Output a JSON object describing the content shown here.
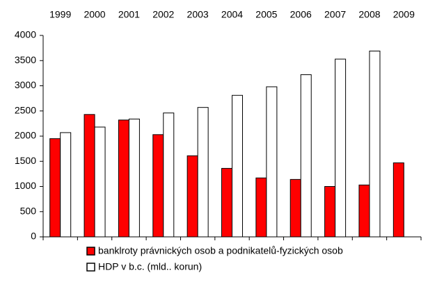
{
  "chart_data": {
    "type": "bar",
    "categories": [
      "1999",
      "2000",
      "2001",
      "2002",
      "2003",
      "2004",
      "2005",
      "2006",
      "2007",
      "2008",
      "2009"
    ],
    "series": [
      {
        "name": "banklroty právnických osob a podnikatelů-fyzických osob",
        "color": "#ff0000",
        "values": [
          1950,
          2430,
          2320,
          2030,
          1610,
          1360,
          1170,
          1140,
          1000,
          1030,
          1470
        ]
      },
      {
        "name": "HDP v b.c. (mld.. korun)",
        "color": "#ffffff",
        "values": [
          2070,
          2180,
          2340,
          2460,
          2570,
          2810,
          2980,
          3220,
          3530,
          3690,
          null
        ]
      }
    ],
    "ylim": [
      0,
      4000
    ],
    "yticks": [
      0,
      500,
      1000,
      1500,
      2000,
      2500,
      3000,
      3500,
      4000
    ],
    "grid": false,
    "legend": "bottom"
  }
}
